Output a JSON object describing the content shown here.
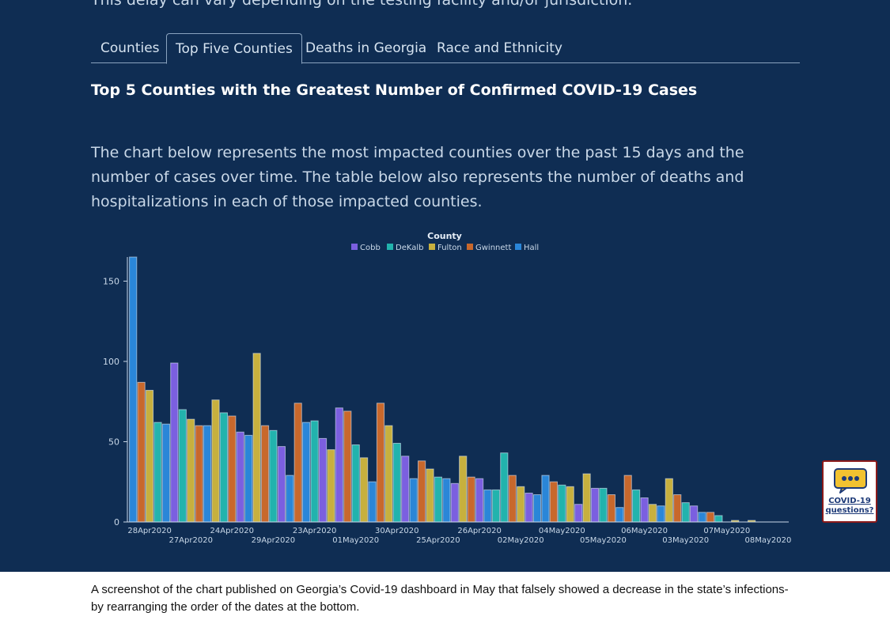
{
  "intro": {
    "text": "This delay can vary depending on the testing facility and/or jurisdiction."
  },
  "tabs": [
    {
      "label": "Counties",
      "active": false
    },
    {
      "label": "Top Five Counties",
      "active": true
    },
    {
      "label": "Deaths in Georgia",
      "active": false
    },
    {
      "label": "Race and Ethnicity",
      "active": false
    }
  ],
  "section": {
    "title": "Top 5 Counties with the Greatest Number of Confirmed COVID-19 Cases",
    "description": "The chart below represents the most impacted counties over the past 15 days and the number of cases over time. The table below also represents the number of deaths and hospitalizations in each of those impacted counties."
  },
  "chat": {
    "label_line1": "COVID-19",
    "label_line2": "questions?",
    "icon": "chat-bubble-icon"
  },
  "caption": {
    "text": "A screenshot of the chart published on Georgia’s Covid-19 dashboard in May that falsely showed a decrease in the state’s infections- by rearranging the order of the dates at the bottom."
  },
  "chart_data": {
    "type": "bar",
    "legend_title": "County",
    "legend_position": "top-center",
    "grid": false,
    "ylim": [
      0,
      165
    ],
    "yticks": [
      0,
      50,
      100,
      150
    ],
    "categories": [
      "28Apr2020",
      "27Apr2020",
      "24Apr2020",
      "29Apr2020",
      "23Apr2020",
      "01May2020",
      "30Apr2020",
      "25Apr2020",
      "26Apr2020",
      "02May2020",
      "04May2020",
      "05May2020",
      "06May2020",
      "03May2020",
      "07May2020",
      "08May2020"
    ],
    "series": [
      {
        "name": "Cobb",
        "color": "#7b5fe0",
        "values": [
          null,
          99,
          56,
          47,
          52,
          71,
          41,
          24,
          27,
          18,
          11,
          21,
          15,
          10,
          0,
          0
        ]
      },
      {
        "name": "DeKalb",
        "color": "#22b3ad",
        "values": [
          62,
          70,
          68,
          57,
          63,
          48,
          49,
          28,
          20,
          43,
          23,
          21,
          20,
          12,
          4,
          0
        ]
      },
      {
        "name": "Fulton",
        "color": "#c7b03e",
        "values": [
          82,
          64,
          76,
          105,
          45,
          40,
          60,
          33,
          41,
          22,
          22,
          30,
          11,
          27,
          1,
          1
        ]
      },
      {
        "name": "Gwinnett",
        "color": "#c8682c",
        "values": [
          87,
          60,
          66,
          60,
          74,
          69,
          74,
          38,
          28,
          29,
          25,
          17,
          29,
          17,
          6,
          0
        ]
      },
      {
        "name": "Hall",
        "color": "#2a86d8",
        "values": [
          165,
          60,
          54,
          29,
          62,
          25,
          27,
          27,
          20,
          17,
          29,
          9,
          10,
          6,
          0,
          0
        ]
      }
    ],
    "bar_order": [
      [
        "Hall",
        "Gwinnett",
        "Fulton",
        "DeKalb",
        "Hall"
      ],
      [
        "Cobb",
        "DeKalb",
        "Fulton",
        "Gwinnett",
        "Hall"
      ],
      [
        "Fulton",
        "DeKalb",
        "Gwinnett",
        "Cobb",
        "Hall"
      ],
      [
        "Fulton",
        "Gwinnett",
        "DeKalb",
        "Cobb",
        "Hall"
      ],
      [
        "Gwinnett",
        "Hall",
        "DeKalb",
        "Cobb",
        "Fulton"
      ],
      [
        "Cobb",
        "Gwinnett",
        "DeKalb",
        "Fulton",
        "Hall"
      ],
      [
        "Gwinnett",
        "Fulton",
        "DeKalb",
        "Cobb",
        "Hall"
      ],
      [
        "Gwinnett",
        "Fulton",
        "DeKalb",
        "Hall",
        "Cobb"
      ],
      [
        "Fulton",
        "Gwinnett",
        "Cobb",
        "Hall",
        "DeKalb"
      ],
      [
        "DeKalb",
        "Gwinnett",
        "Fulton",
        "Cobb",
        "Hall"
      ],
      [
        "Hall",
        "Gwinnett",
        "DeKalb",
        "Fulton",
        "Cobb"
      ],
      [
        "Fulton",
        "Cobb",
        "DeKalb",
        "Gwinnett",
        "Hall"
      ],
      [
        "Gwinnett",
        "DeKalb",
        "Cobb",
        "Fulton",
        "Hall"
      ],
      [
        "Fulton",
        "Gwinnett",
        "DeKalb",
        "Cobb",
        "Hall"
      ],
      [
        "Gwinnett",
        "DeKalb",
        "Cobb",
        "Fulton",
        "Hall"
      ],
      [
        "Fulton",
        "Cobb",
        "DeKalb",
        "Gwinnett",
        "Hall"
      ]
    ]
  }
}
